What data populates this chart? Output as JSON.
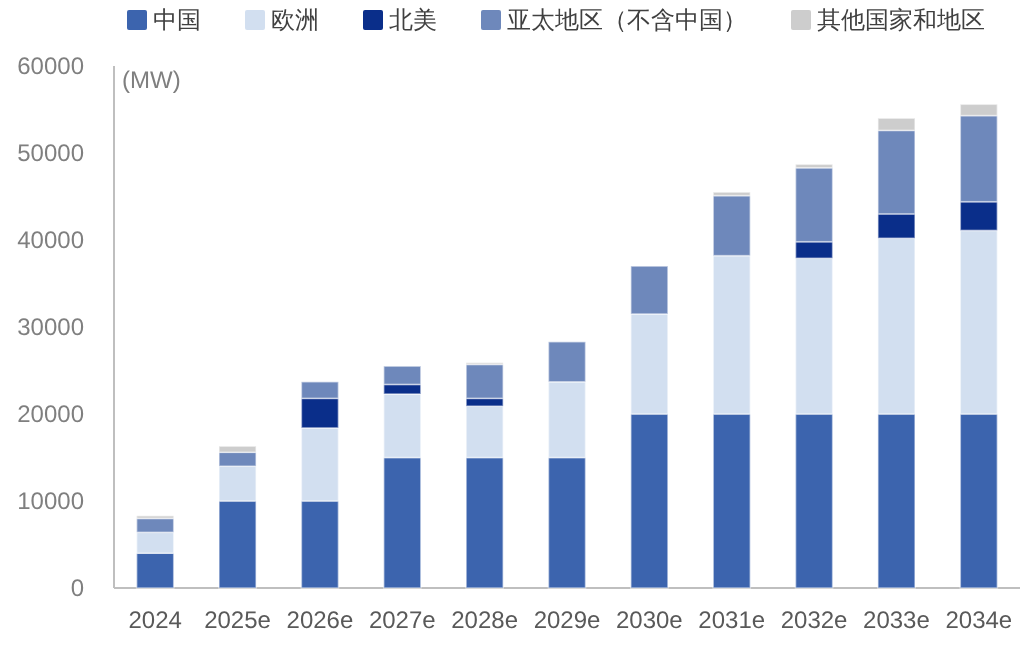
{
  "chart_data": {
    "type": "bar",
    "stacked": true,
    "ylabel": "(MW)",
    "categories": [
      "2024",
      "2025e",
      "2026e",
      "2027e",
      "2028e",
      "2029e",
      "2030e",
      "2031e",
      "2032e",
      "2033e",
      "2034e"
    ],
    "series": [
      {
        "name": "中国",
        "color": "#3c64ae",
        "values": [
          4000,
          10000,
          10000,
          15000,
          15000,
          15000,
          20000,
          20000,
          20000,
          20000,
          20000
        ]
      },
      {
        "name": "欧洲",
        "color": "#d2dff0",
        "values": [
          2400,
          4000,
          8400,
          7300,
          5900,
          8700,
          11500,
          18200,
          17900,
          20200,
          21100
        ]
      },
      {
        "name": "北美",
        "color": "#0a2e8a",
        "values": [
          null,
          null,
          3400,
          1100,
          900,
          null,
          null,
          null,
          1900,
          2800,
          3300
        ]
      },
      {
        "name": "亚太地区（不含中国）",
        "color": "#6e88bb",
        "values": [
          1600,
          1600,
          1900,
          2100,
          3900,
          4600,
          5500,
          6900,
          8500,
          9600,
          9900
        ]
      },
      {
        "name": "其他国家和地区",
        "color": "#cdcdcd",
        "values": [
          300,
          700,
          null,
          null,
          200,
          null,
          null,
          400,
          400,
          1400,
          1300
        ]
      }
    ],
    "ylim": [
      0,
      60000
    ],
    "yticks": [
      0,
      10000,
      20000,
      30000,
      40000,
      50000,
      60000
    ],
    "legend": "top"
  }
}
